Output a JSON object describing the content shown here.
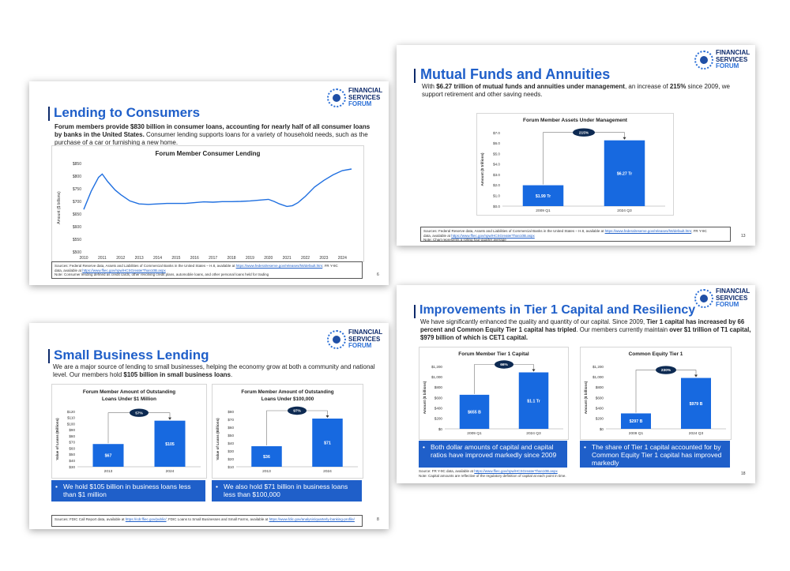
{
  "logo": {
    "line1": "FINANCIAL",
    "line2": "SERVICES",
    "line3": "FORUM"
  },
  "slide_consumer": {
    "title": "Lending to Consumers",
    "lead_bold": "Forum members provide $830 billion in consumer loans, accounting for nearly half of all consumer loans by banks in the United States.",
    "lead_rest": " Consumer lending supports loans for a variety of household needs, such as the purchase of a car or furnishing a new home.",
    "page": "6",
    "src1": "Sources: Federal Reserve data, Assets and Liabilities of Commercial Banks in the United States – H.8, available at ",
    "src1_link": "https://www.federalreserve.gov/releases/h8/default.htm",
    "src1_end": "; FR Y-9C",
    "src2": "data, available at ",
    "src2_link": "https://www.ffiec.gov/npw/HCSGreaterThan10B.aspx",
    "src3": "Note: Consumer lending defined as credit cards, other revolving credit plans, automobile loans, and other personal loans held for trading"
  },
  "slide_mutual": {
    "title": "Mutual Funds and Annuities",
    "lead_pre": "With ",
    "lead_bold1": "$6.27 trillion of mutual funds and annuities under management",
    "lead_mid": ", an increase of ",
    "lead_bold2": "215%",
    "lead_end": " since 2009, we support retirement and other saving needs.",
    "page": "13",
    "src1": "Sources: Federal Reserve data, Assets and Liabilities of Commercial Banks in the United States – H.8, available at ",
    "src1_link": "https://www.federalreserve.gov/releases/h8/default.htm",
    "src1_end": "; FR Y-9C",
    "src2": "data, available at ",
    "src2_link": "https://www.ffiec.gov/npw/HCSGreaterThan10B.aspx",
    "src3": "Note: Chart represents a rolling four-quarter average"
  },
  "slide_small": {
    "title": "Small Business Lending",
    "lead_pre": "We are a major source of lending to small businesses, helping the economy grow at both a community and national level. Our members hold ",
    "lead_bold": "$105 billion in small business loans",
    "lead_end": ".",
    "callout1": "We hold $105 billion in business loans less than $1 million",
    "callout2": "We also hold $71 billion in business loans less than $100,000",
    "page": "8",
    "src1": "Sources: FDIC Call Report data, available at ",
    "src1_link": "https://cdr.ffiec.gov/public/",
    "src1_mid": "; FDIC Loans to Small Businesses and Small Farms, available at ",
    "src1_link2": "https://www.fdic.gov/analysis/quarterly-banking-profile/"
  },
  "slide_tier1": {
    "title": "Improvements in Tier 1 Capital and Resiliency",
    "lead_pre": "We have significantly enhanced the quality and quantity of our capital.  Since 2009, ",
    "lead_bold1": "Tier 1 capital has increased by 66 percent and Common Equity Tier 1 capital has tripled",
    "lead_mid": ". Our members currently maintain ",
    "lead_bold2": "over $1 trillion of T1 capital, $979 billion of which is CET1 capital.",
    "callout1": "Both dollar amounts of capital and capital ratios have improved markedly since 2009",
    "callout2": "The share of Tier 1 capital accounted for by Common Equity Tier 1 capital has improved markedly",
    "page": "18",
    "src1": "Source:  FR Y-9C data, available at ",
    "src1_link": "https://www.ffiec.gov/npw/HCSGreaterThan10B.aspx",
    "src2": "Note: Capital amounts are reflective of the regulatory definition of capital at each point in time."
  },
  "chart_data": [
    {
      "type": "line",
      "title": "Forum Member Consumer Lending",
      "ylabel": "Amount ($ billions)",
      "xlabel": "",
      "x_ticks": [
        "2010",
        "2011",
        "2012",
        "2013",
        "2014",
        "2015",
        "2016",
        "2017",
        "2018",
        "2019",
        "2020",
        "2021",
        "2022",
        "2023",
        "2024"
      ],
      "y_ticks": [
        "$500",
        "$550",
        "$600",
        "$650",
        "$700",
        "$750",
        "$800",
        "$850"
      ],
      "ylim": [
        500,
        850
      ],
      "xlim": [
        2010,
        2024.8
      ],
      "x": [
        2010,
        2010.4,
        2010.8,
        2011,
        2011.3,
        2011.7,
        2012,
        2012.5,
        2013,
        2013.5,
        2014,
        2014.5,
        2015,
        2015.5,
        2016,
        2016.5,
        2017,
        2017.5,
        2018,
        2018.5,
        2019,
        2019.5,
        2020,
        2020.3,
        2020.6,
        2021,
        2021.3,
        2021.6,
        2022,
        2022.5,
        2023,
        2023.5,
        2024,
        2024.5
      ],
      "y": [
        668,
        740,
        795,
        808,
        778,
        745,
        727,
        702,
        690,
        688,
        690,
        692,
        692,
        692,
        695,
        698,
        697,
        699,
        699,
        700,
        702,
        705,
        708,
        700,
        690,
        680,
        683,
        695,
        720,
        757,
        783,
        805,
        822,
        828
      ]
    },
    {
      "type": "bar",
      "title": "Forum Member Assets Under Management",
      "ylabel": "Amount ($ trillions)",
      "categories": [
        "2009 Q1",
        "2024 Q3"
      ],
      "values": [
        1.99,
        6.27
      ],
      "labels": [
        "$1.99 Tr",
        "$6.27 Tr"
      ],
      "y_ticks": [
        "$0.0",
        "$1.0",
        "$2.0",
        "$3.0",
        "$4.0",
        "$5.0",
        "$6.0",
        "$7.0"
      ],
      "ylim": [
        0,
        7
      ],
      "annotation": "215%"
    },
    {
      "type": "bar",
      "title_line1": "Forum Member Amount of Outstanding",
      "title_line2": "Loans Under $1 Million",
      "ylabel": "Value of Loans (Billions)",
      "categories": [
        "2013",
        "2024"
      ],
      "values": [
        67,
        105
      ],
      "labels": [
        "$67",
        "$105"
      ],
      "y_ticks": [
        "$30",
        "$40",
        "$50",
        "$60",
        "$70",
        "$80",
        "$90",
        "$100",
        "$110",
        "$120"
      ],
      "ylim": [
        30,
        120
      ],
      "annotation": "57%"
    },
    {
      "type": "bar",
      "title_line1": "Forum Member Amount of Outstanding",
      "title_line2": "Loans Under $100,000",
      "ylabel": "Value of Loans (Billions)",
      "categories": [
        "2013",
        "2024"
      ],
      "values": [
        36,
        71
      ],
      "labels": [
        "$36",
        "$71"
      ],
      "y_ticks": [
        "$10",
        "$20",
        "$30",
        "$40",
        "$50",
        "$60",
        "$70",
        "$80"
      ],
      "ylim": [
        10,
        80
      ],
      "annotation": "97%"
    },
    {
      "type": "bar",
      "title": "Forum Member Tier 1 Capital",
      "ylabel": "Amount ($ billions)",
      "categories": [
        "2009 Q1",
        "2024 Q3"
      ],
      "values": [
        655,
        1086
      ],
      "labels": [
        "$655 B",
        "$1.1 Tr"
      ],
      "y_ticks": [
        "$0",
        "$200",
        "$400",
        "$600",
        "$800",
        "$1,000",
        "$1,200"
      ],
      "ylim": [
        0,
        1200
      ],
      "annotation": "66%"
    },
    {
      "type": "bar",
      "title": "Common Equity Tier 1",
      "ylabel": "Amount ($ billions)",
      "categories": [
        "2009 Q1",
        "2024 Q3"
      ],
      "values": [
        297,
        979
      ],
      "labels": [
        "$297 B",
        "$979 B"
      ],
      "y_ticks": [
        "$0",
        "$200",
        "$400",
        "$600",
        "$800",
        "$1,000",
        "$1,200"
      ],
      "ylim": [
        0,
        1200
      ],
      "annotation": "230%"
    }
  ],
  "colors": {
    "brand_blue": "#1f5fc9",
    "navy": "#0d2a6b",
    "bar_blue": "#1769e0"
  }
}
